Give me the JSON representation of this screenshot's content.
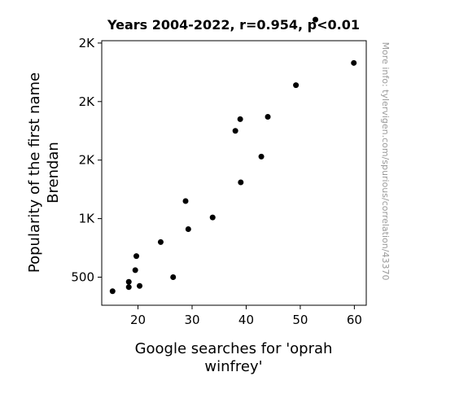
{
  "chart_data": {
    "type": "scatter",
    "title": "Years 2004-2022, r=0.954, p<0.01",
    "xlabel": [
      "Google searches for 'oprah",
      "winfrey'"
    ],
    "ylabel": [
      "Popularity of the first name",
      "Brendan"
    ],
    "source_note": "More info: tylervigen.com/spurious/correlation/43370",
    "xlim": [
      13.3,
      62.2
    ],
    "ylim": [
      260,
      2520
    ],
    "xticks": [
      {
        "value": 20,
        "label": "20"
      },
      {
        "value": 30,
        "label": "30"
      },
      {
        "value": 40,
        "label": "40"
      },
      {
        "value": 50,
        "label": "50"
      },
      {
        "value": 60,
        "label": "60"
      }
    ],
    "yticks": [
      {
        "value": 500,
        "label": "500"
      },
      {
        "value": 1000,
        "label": "1K"
      },
      {
        "value": 1500,
        "label": "2K"
      },
      {
        "value": 2000,
        "label": "2K"
      },
      {
        "value": 2500,
        "label": "2K"
      }
    ],
    "points": [
      {
        "x": 15.3,
        "y": 380
      },
      {
        "x": 18.3,
        "y": 415
      },
      {
        "x": 18.3,
        "y": 460
      },
      {
        "x": 20.3,
        "y": 425
      },
      {
        "x": 19.5,
        "y": 560
      },
      {
        "x": 19.7,
        "y": 680
      },
      {
        "x": 24.2,
        "y": 800
      },
      {
        "x": 26.5,
        "y": 500
      },
      {
        "x": 28.8,
        "y": 1150
      },
      {
        "x": 29.3,
        "y": 910
      },
      {
        "x": 33.8,
        "y": 1010
      },
      {
        "x": 38.0,
        "y": 1750
      },
      {
        "x": 38.9,
        "y": 1850
      },
      {
        "x": 39.0,
        "y": 1310
      },
      {
        "x": 42.8,
        "y": 1530
      },
      {
        "x": 44.0,
        "y": 1870
      },
      {
        "x": 49.2,
        "y": 2140
      },
      {
        "x": 52.8,
        "y": 2700
      },
      {
        "x": 59.9,
        "y": 2330
      }
    ]
  }
}
